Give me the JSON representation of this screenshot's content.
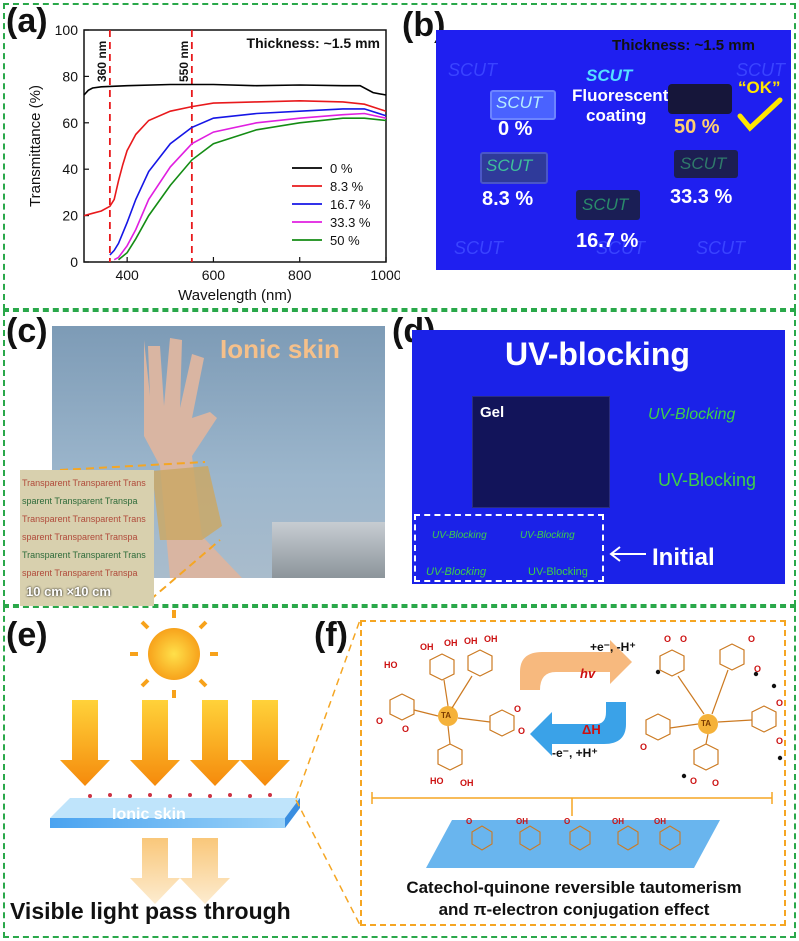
{
  "panels": {
    "a": "(a)",
    "b": "(b)",
    "c": "(c)",
    "d": "(d)",
    "e": "(e)",
    "f": "(f)"
  },
  "chart_data": {
    "type": "line",
    "xlabel": "Wavelength (nm)",
    "ylabel": "Transmittance (%)",
    "xlim": [
      300,
      1000
    ],
    "ylim": [
      0,
      100
    ],
    "xticks": [
      400,
      600,
      800,
      1000
    ],
    "yticks": [
      0,
      20,
      40,
      60,
      80,
      100
    ],
    "annotation": "Thickness: ~1.5 mm",
    "markers": [
      {
        "x": 360,
        "label": "360 nm"
      },
      {
        "x": 550,
        "label": "550 nm"
      }
    ],
    "legend_position": "bottom-right",
    "series": [
      {
        "name": "0 %",
        "color": "#000000",
        "x": [
          300,
          310,
          320,
          340,
          360,
          400,
          500,
          600,
          700,
          800,
          900,
          940,
          970,
          1000
        ],
        "y": [
          72,
          74,
          75,
          75.5,
          75.7,
          76,
          76.5,
          76.5,
          76,
          76.3,
          76,
          76,
          73,
          72
        ]
      },
      {
        "name": "8.3 %",
        "color": "#e8191c",
        "x": [
          300,
          320,
          340,
          360,
          370,
          380,
          390,
          400,
          420,
          450,
          500,
          550,
          600,
          700,
          800,
          900,
          950,
          1000
        ],
        "y": [
          20,
          21,
          22,
          24,
          27,
          35,
          42,
          48,
          55,
          61,
          65,
          67,
          68.5,
          69,
          69.5,
          69,
          68,
          65
        ]
      },
      {
        "name": "16.7 %",
        "color": "#1616e6",
        "x": [
          360,
          370,
          380,
          400,
          420,
          450,
          500,
          550,
          600,
          700,
          800,
          900,
          950,
          1000
        ],
        "y": [
          3,
          5,
          8,
          17,
          27,
          39,
          51,
          58,
          62,
          64,
          65,
          66,
          66,
          63
        ]
      },
      {
        "name": "33.3 %",
        "color": "#e01fe0",
        "x": [
          370,
          380,
          400,
          420,
          450,
          500,
          550,
          600,
          700,
          800,
          900,
          950,
          1000
        ],
        "y": [
          1,
          2,
          7,
          14,
          27,
          41,
          51,
          56,
          60,
          62,
          63.5,
          64,
          62
        ]
      },
      {
        "name": "50 %",
        "color": "#148c14",
        "x": [
          380,
          400,
          420,
          450,
          500,
          550,
          600,
          700,
          800,
          900,
          950,
          1000
        ],
        "y": [
          1,
          4,
          10,
          20,
          33,
          44,
          51,
          57,
          60,
          62,
          62,
          61
        ]
      }
    ]
  },
  "b": {
    "thickness": "Thickness: ~1.5 mm",
    "scut": "SCUT",
    "fluor1": "Fluorescent",
    "fluor2": "coating",
    "ok": "“OK”",
    "p0": "0 %",
    "p50": "50 %",
    "p83": "8.3 %",
    "p333": "33.3 %",
    "p167": "16.7 %"
  },
  "c": {
    "title": "Ionic skin",
    "size": "10 cm ×10 cm",
    "rows": [
      "Transparent  Transparent  Trans",
      "sparent  Transparent  Transpa",
      "Transparent  Transparent  Trans",
      "sparent  Transparent  Transpa",
      "Transparent  Transparent  Trans",
      "sparent  Transparent  Transpa"
    ]
  },
  "d": {
    "title": "UV-blocking",
    "gel": "Gel",
    "uvb": "UV-Blocking",
    "initial": "Initial"
  },
  "e": {
    "skin": "Ionic skin",
    "caption": "Visible light pass through"
  },
  "f": {
    "top1": "+e⁻,  -H⁺",
    "hv": "hv",
    "dh": "ΔH",
    "bot1": "-e⁻,  +H⁺",
    "ta": "TA",
    "cap1": "Catechol-quinone reversible tautomerism",
    "cap2": "and π-electron conjugation effect"
  }
}
